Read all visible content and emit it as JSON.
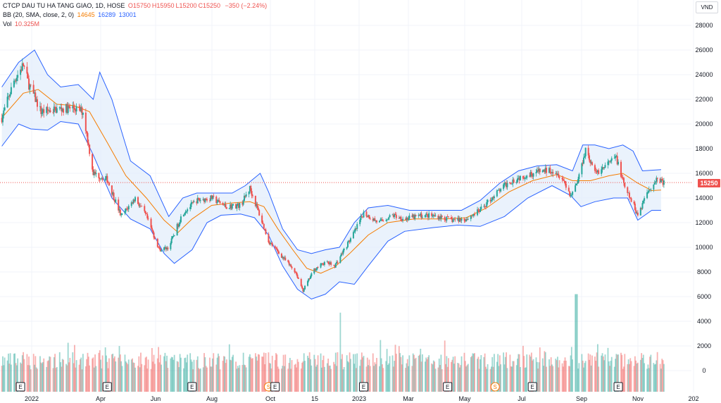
{
  "legend": {
    "symbol_line": "CTCP DAU TU HA TANG GIAO, 1D, HOSE",
    "ohlc": [
      {
        "label": "O",
        "value": "15750"
      },
      {
        "label": "H",
        "value": "15950"
      },
      {
        "label": "L",
        "value": "15200"
      },
      {
        "label": "C",
        "value": "15250"
      }
    ],
    "change": "−350 (−2.24%)",
    "bb_label": "BB (20, SMA, close, 2, 0)",
    "bb_basis": "14645",
    "bb_upper": "16289",
    "bb_lower": "13001",
    "vol_label": "Vol",
    "vol_value": "10.325M"
  },
  "currency": "VND",
  "last_price_label": "15250",
  "colors": {
    "up": "#26a69a",
    "down": "#ef5350",
    "basis": "#f57c00",
    "band": "#2962ff",
    "band_fill": "#e3eefb",
    "grid": "#f0f3fa"
  },
  "chart_data": {
    "type": "candlestick",
    "title": "CTCP DAU TU HA TANG GIAO, 1D, HOSE",
    "ylim": [
      0,
      29000
    ],
    "y_ticks": [
      "28000",
      "26000",
      "24000",
      "22000",
      "20000",
      "18000",
      "16000",
      "14000",
      "12000",
      "10000",
      "8000",
      "6000",
      "4000",
      "2000",
      "0"
    ],
    "x_ticks": [
      "2022",
      "Apr",
      "Jun",
      "Aug",
      "Oct",
      "15",
      "2023",
      "Mar",
      "May",
      "Jul",
      "Sep",
      "Nov",
      "202"
    ],
    "close_path": [
      {
        "x": "2021-12-28",
        "close": 20500
      },
      {
        "x": "2022-01-10",
        "close": 23500
      },
      {
        "x": "2022-01-20",
        "close": 24800
      },
      {
        "x": "2022-01-26",
        "close": 23200
      },
      {
        "x": "2022-02-08",
        "close": 21000
      },
      {
        "x": "2022-02-25",
        "close": 21200
      },
      {
        "x": "2022-03-15",
        "close": 21300
      },
      {
        "x": "2022-03-25",
        "close": 21000
      },
      {
        "x": "2022-04-05",
        "close": 16000
      },
      {
        "x": "2022-04-20",
        "close": 15500
      },
      {
        "x": "2022-05-05",
        "close": 12500
      },
      {
        "x": "2022-05-20",
        "close": 14000
      },
      {
        "x": "2022-06-01",
        "close": 12500
      },
      {
        "x": "2022-06-15",
        "close": 9800
      },
      {
        "x": "2022-06-25",
        "close": 10000
      },
      {
        "x": "2022-07-10",
        "close": 12800
      },
      {
        "x": "2022-07-25",
        "close": 13800
      },
      {
        "x": "2022-08-10",
        "close": 14000
      },
      {
        "x": "2022-08-25",
        "close": 13300
      },
      {
        "x": "2022-09-10",
        "close": 13400
      },
      {
        "x": "2022-09-20",
        "close": 14800
      },
      {
        "x": "2022-10-01",
        "close": 12500
      },
      {
        "x": "2022-10-10",
        "close": 10500
      },
      {
        "x": "2022-10-25",
        "close": 9200
      },
      {
        "x": "2022-11-08",
        "close": 8000
      },
      {
        "x": "2022-11-16",
        "close": 6500
      },
      {
        "x": "2022-11-28",
        "close": 8200
      },
      {
        "x": "2022-12-10",
        "close": 8800
      },
      {
        "x": "2022-12-20",
        "close": 8500
      },
      {
        "x": "2022-12-30",
        "close": 9800
      },
      {
        "x": "2023-01-10",
        "close": 11200
      },
      {
        "x": "2023-01-20",
        "close": 12800
      },
      {
        "x": "2023-02-05",
        "close": 12000
      },
      {
        "x": "2023-02-20",
        "close": 12600
      },
      {
        "x": "2023-03-05",
        "close": 12300
      },
      {
        "x": "2023-03-25",
        "close": 12600
      },
      {
        "x": "2023-04-10",
        "close": 12500
      },
      {
        "x": "2023-04-25",
        "close": 12200
      },
      {
        "x": "2023-05-10",
        "close": 12300
      },
      {
        "x": "2023-05-25",
        "close": 13000
      },
      {
        "x": "2023-06-10",
        "close": 14300
      },
      {
        "x": "2023-06-25",
        "close": 15300
      },
      {
        "x": "2023-07-10",
        "close": 15800
      },
      {
        "x": "2023-07-25",
        "close": 16100
      },
      {
        "x": "2023-08-10",
        "close": 16300
      },
      {
        "x": "2023-08-20",
        "close": 15800
      },
      {
        "x": "2023-08-30",
        "close": 14200
      },
      {
        "x": "2023-09-07",
        "close": 15500
      },
      {
        "x": "2023-09-15",
        "close": 18000
      },
      {
        "x": "2023-09-25",
        "close": 16000
      },
      {
        "x": "2023-10-05",
        "close": 16500
      },
      {
        "x": "2023-10-18",
        "close": 17300
      },
      {
        "x": "2023-10-27",
        "close": 14800
      },
      {
        "x": "2023-11-05",
        "close": 13500
      },
      {
        "x": "2023-11-10",
        "close": 12600
      },
      {
        "x": "2023-11-20",
        "close": 14500
      },
      {
        "x": "2023-12-01",
        "close": 15600
      },
      {
        "x": "2023-12-08",
        "close": 15250
      }
    ],
    "bb_upper_path": [
      {
        "x": "2021-12-28",
        "v": 23000
      },
      {
        "x": "2022-01-15",
        "v": 25000
      },
      {
        "x": "2022-02-01",
        "v": 26000
      },
      {
        "x": "2022-02-15",
        "v": 24000
      },
      {
        "x": "2022-03-01",
        "v": 23000
      },
      {
        "x": "2022-03-20",
        "v": 23200
      },
      {
        "x": "2022-04-05",
        "v": 22000
      },
      {
        "x": "2022-04-12",
        "v": 24200
      },
      {
        "x": "2022-04-25",
        "v": 22000
      },
      {
        "x": "2022-05-15",
        "v": 17000
      },
      {
        "x": "2022-06-05",
        "v": 15800
      },
      {
        "x": "2022-06-25",
        "v": 12500
      },
      {
        "x": "2022-07-10",
        "v": 14000
      },
      {
        "x": "2022-07-25",
        "v": 14400
      },
      {
        "x": "2022-08-15",
        "v": 14400
      },
      {
        "x": "2022-09-01",
        "v": 14400
      },
      {
        "x": "2022-09-15",
        "v": 15000
      },
      {
        "x": "2022-10-01",
        "v": 16000
      },
      {
        "x": "2022-10-10",
        "v": 14500
      },
      {
        "x": "2022-10-25",
        "v": 11500
      },
      {
        "x": "2022-11-10",
        "v": 9800
      },
      {
        "x": "2022-11-25",
        "v": 9500
      },
      {
        "x": "2022-12-10",
        "v": 9800
      },
      {
        "x": "2022-12-25",
        "v": 10000
      },
      {
        "x": "2023-01-10",
        "v": 12000
      },
      {
        "x": "2023-01-25",
        "v": 13200
      },
      {
        "x": "2023-02-15",
        "v": 13400
      },
      {
        "x": "2023-03-10",
        "v": 13000
      },
      {
        "x": "2023-04-10",
        "v": 13000
      },
      {
        "x": "2023-05-05",
        "v": 13000
      },
      {
        "x": "2023-05-25",
        "v": 13800
      },
      {
        "x": "2023-06-15",
        "v": 15200
      },
      {
        "x": "2023-07-05",
        "v": 16200
      },
      {
        "x": "2023-07-25",
        "v": 16600
      },
      {
        "x": "2023-08-15",
        "v": 16700
      },
      {
        "x": "2023-09-01",
        "v": 16200
      },
      {
        "x": "2023-09-12",
        "v": 18300
      },
      {
        "x": "2023-09-25",
        "v": 18300
      },
      {
        "x": "2023-10-10",
        "v": 18000
      },
      {
        "x": "2023-10-25",
        "v": 18300
      },
      {
        "x": "2023-11-05",
        "v": 17800
      },
      {
        "x": "2023-11-15",
        "v": 16200
      },
      {
        "x": "2023-12-05",
        "v": 16300
      }
    ],
    "bb_basis_path": [
      {
        "x": "2021-12-28",
        "v": 20500
      },
      {
        "x": "2022-01-20",
        "v": 22500
      },
      {
        "x": "2022-02-05",
        "v": 22800
      },
      {
        "x": "2022-02-25",
        "v": 21600
      },
      {
        "x": "2022-03-15",
        "v": 21500
      },
      {
        "x": "2022-04-01",
        "v": 21000
      },
      {
        "x": "2022-04-20",
        "v": 18500
      },
      {
        "x": "2022-05-10",
        "v": 15800
      },
      {
        "x": "2022-06-01",
        "v": 14000
      },
      {
        "x": "2022-06-20",
        "v": 12200
      },
      {
        "x": "2022-07-05",
        "v": 11200
      },
      {
        "x": "2022-07-20",
        "v": 12300
      },
      {
        "x": "2022-08-10",
        "v": 13400
      },
      {
        "x": "2022-09-01",
        "v": 13600
      },
      {
        "x": "2022-09-20",
        "v": 13700
      },
      {
        "x": "2022-10-05",
        "v": 13300
      },
      {
        "x": "2022-10-20",
        "v": 11500
      },
      {
        "x": "2022-11-05",
        "v": 9800
      },
      {
        "x": "2022-11-20",
        "v": 8300
      },
      {
        "x": "2022-12-05",
        "v": 7900
      },
      {
        "x": "2022-12-20",
        "v": 8400
      },
      {
        "x": "2023-01-05",
        "v": 9500
      },
      {
        "x": "2023-01-25",
        "v": 11000
      },
      {
        "x": "2023-02-15",
        "v": 12000
      },
      {
        "x": "2023-03-15",
        "v": 12300
      },
      {
        "x": "2023-04-15",
        "v": 12300
      },
      {
        "x": "2023-05-10",
        "v": 12400
      },
      {
        "x": "2023-06-01",
        "v": 13200
      },
      {
        "x": "2023-06-25",
        "v": 14500
      },
      {
        "x": "2023-07-20",
        "v": 15400
      },
      {
        "x": "2023-08-15",
        "v": 15900
      },
      {
        "x": "2023-09-01",
        "v": 15400
      },
      {
        "x": "2023-09-20",
        "v": 15400
      },
      {
        "x": "2023-10-10",
        "v": 15800
      },
      {
        "x": "2023-10-25",
        "v": 16000
      },
      {
        "x": "2023-11-10",
        "v": 15200
      },
      {
        "x": "2023-11-25",
        "v": 14600
      },
      {
        "x": "2023-12-05",
        "v": 14645
      }
    ],
    "bb_lower_path": [
      {
        "x": "2021-12-28",
        "v": 18200
      },
      {
        "x": "2022-01-15",
        "v": 20000
      },
      {
        "x": "2022-01-28",
        "v": 19600
      },
      {
        "x": "2022-02-15",
        "v": 19500
      },
      {
        "x": "2022-03-01",
        "v": 20200
      },
      {
        "x": "2022-03-20",
        "v": 20000
      },
      {
        "x": "2022-04-05",
        "v": 17500
      },
      {
        "x": "2022-04-25",
        "v": 14000
      },
      {
        "x": "2022-05-15",
        "v": 12300
      },
      {
        "x": "2022-06-05",
        "v": 11500
      },
      {
        "x": "2022-06-20",
        "v": 9500
      },
      {
        "x": "2022-07-01",
        "v": 8700
      },
      {
        "x": "2022-07-20",
        "v": 9800
      },
      {
        "x": "2022-08-05",
        "v": 12000
      },
      {
        "x": "2022-08-20",
        "v": 12600
      },
      {
        "x": "2022-09-10",
        "v": 12700
      },
      {
        "x": "2022-09-25",
        "v": 12400
      },
      {
        "x": "2022-10-10",
        "v": 11000
      },
      {
        "x": "2022-10-25",
        "v": 8500
      },
      {
        "x": "2022-11-10",
        "v": 6600
      },
      {
        "x": "2022-11-25",
        "v": 5800
      },
      {
        "x": "2022-12-10",
        "v": 6200
      },
      {
        "x": "2022-12-25",
        "v": 7200
      },
      {
        "x": "2023-01-10",
        "v": 7000
      },
      {
        "x": "2023-01-25",
        "v": 8500
      },
      {
        "x": "2023-02-15",
        "v": 10500
      },
      {
        "x": "2023-03-05",
        "v": 11300
      },
      {
        "x": "2023-04-05",
        "v": 11600
      },
      {
        "x": "2023-05-01",
        "v": 11800
      },
      {
        "x": "2023-05-25",
        "v": 11700
      },
      {
        "x": "2023-06-20",
        "v": 12500
      },
      {
        "x": "2023-07-15",
        "v": 14000
      },
      {
        "x": "2023-08-10",
        "v": 15000
      },
      {
        "x": "2023-08-30",
        "v": 14200
      },
      {
        "x": "2023-09-10",
        "v": 13300
      },
      {
        "x": "2023-09-25",
        "v": 13700
      },
      {
        "x": "2023-10-15",
        "v": 14000
      },
      {
        "x": "2023-10-30",
        "v": 14000
      },
      {
        "x": "2023-11-10",
        "v": 12200
      },
      {
        "x": "2023-11-25",
        "v": 13000
      },
      {
        "x": "2023-12-05",
        "v": 13000
      }
    ],
    "volume_peaks": [
      {
        "x": "2022-12-25",
        "volume_tick_value": 4700
      },
      {
        "x": "2023-09-05",
        "volume_tick_value": 6200
      }
    ],
    "event_markers": [
      {
        "x": "2022-01-17",
        "label": "E"
      },
      {
        "x": "2022-04-20",
        "label": "E"
      },
      {
        "x": "2022-07-20",
        "label": "E"
      },
      {
        "x": "2022-10-10",
        "label": "S"
      },
      {
        "x": "2022-10-17",
        "label": "E"
      },
      {
        "x": "2023-01-20",
        "label": "E"
      },
      {
        "x": "2023-04-20",
        "label": "E"
      },
      {
        "x": "2023-06-10",
        "label": "S"
      },
      {
        "x": "2023-07-20",
        "label": "E"
      },
      {
        "x": "2023-10-20",
        "label": "E"
      }
    ],
    "grid": true,
    "price_scale": "right"
  }
}
